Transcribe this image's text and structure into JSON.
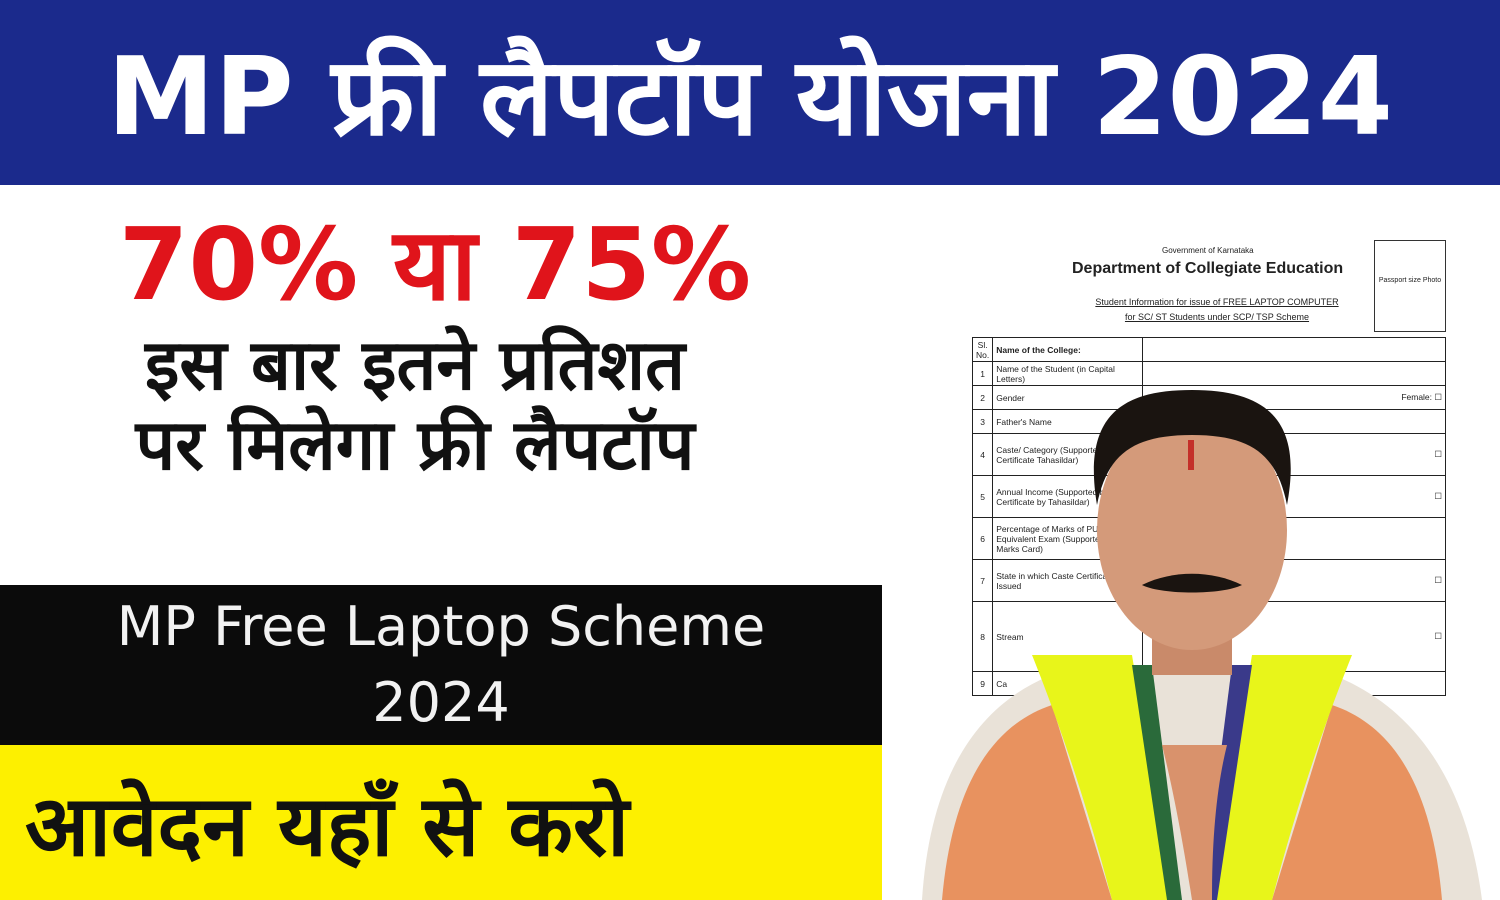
{
  "header": {
    "title": "MP फ्री लैपटॉप योजना 2024"
  },
  "left": {
    "percent": "70% या 75%",
    "line1": "इस बार इतने प्रतिशत",
    "line2": "पर मिलेगा फ्री लैपटॉप"
  },
  "banner": {
    "line1": "MP Free Laptop Scheme",
    "line2": "2024"
  },
  "cta": {
    "text": "आवेदन यहाँ से करो"
  },
  "form": {
    "government": "Government of Karnataka",
    "department": "Department of Collegiate Education",
    "subtitle1": "Student Information for issue of FREE LAPTOP COMPUTER",
    "subtitle2": "for SC/ ST Students under SCP/ TSP Scheme",
    "photo": "Passport size Photo",
    "header_no": "Sl. No.",
    "header_label": "Name of the College:",
    "rows": [
      {
        "n": "1",
        "label": "Name of the Student (in Capital Letters)",
        "value": ""
      },
      {
        "n": "2",
        "label": "Gender",
        "value": "Female: ☐"
      },
      {
        "n": "3",
        "label": "Father's Name",
        "value": ""
      },
      {
        "n": "4",
        "label": "Caste/ Category (Supported by Cast Certificate Tahasildar)",
        "value": "☐"
      },
      {
        "n": "5",
        "label": "Annual Income (Supported by Income Certificate by Tahasildar)",
        "value": "☐"
      },
      {
        "n": "6",
        "label": "Percentage of Marks of PUC or Equivalent Exam (Supported by Marks Card)",
        "value": ""
      },
      {
        "n": "7",
        "label": "State in which Caste Certificate Issued",
        "value": "☐"
      },
      {
        "n": "8",
        "label": "Stream",
        "value": "☐"
      },
      {
        "n": "9",
        "label": "Ca",
        "value": ""
      }
    ]
  },
  "colors": {
    "header_bg": "#1b2a8c",
    "percent": "#e0141b",
    "banner_bg": "#0b0b0b",
    "cta_bg": "#fdf000"
  }
}
